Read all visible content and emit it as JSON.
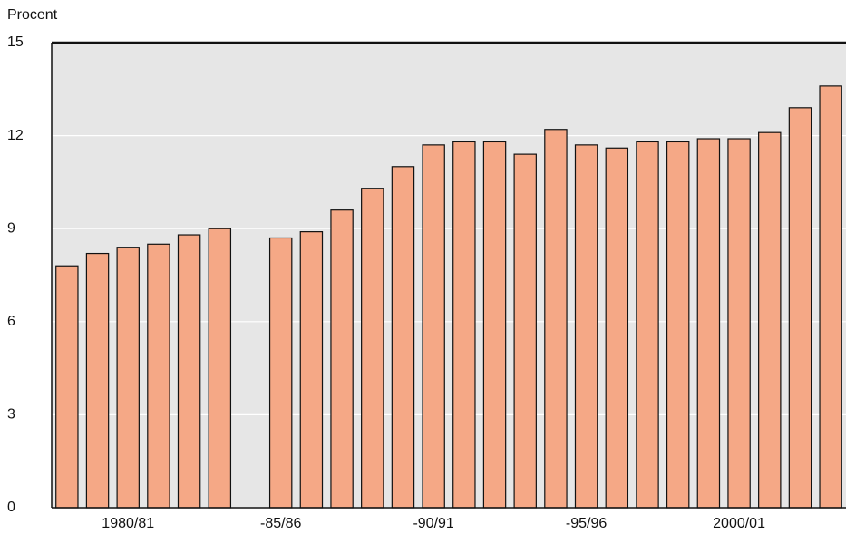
{
  "chart_data": {
    "type": "bar",
    "y_label": "Procent",
    "categories": [
      null,
      null,
      "1980/81",
      null,
      null,
      null,
      null,
      "-85/86",
      null,
      null,
      null,
      null,
      "-90/91",
      null,
      null,
      null,
      null,
      "-95/96",
      null,
      null,
      null,
      null,
      "2000/01",
      null,
      null,
      null
    ],
    "values": [
      7.8,
      8.2,
      8.4,
      8.5,
      8.8,
      9.0,
      null,
      8.7,
      8.9,
      9.6,
      10.3,
      11.0,
      11.7,
      11.8,
      11.8,
      11.4,
      12.2,
      11.7,
      11.6,
      11.8,
      11.8,
      11.9,
      11.9,
      12.1,
      12.9,
      13.6
    ],
    "color": "#f5a886",
    "ylim": [
      0,
      15
    ],
    "yticks": [
      0,
      3,
      6,
      9,
      12,
      15
    ],
    "grid": true
  }
}
